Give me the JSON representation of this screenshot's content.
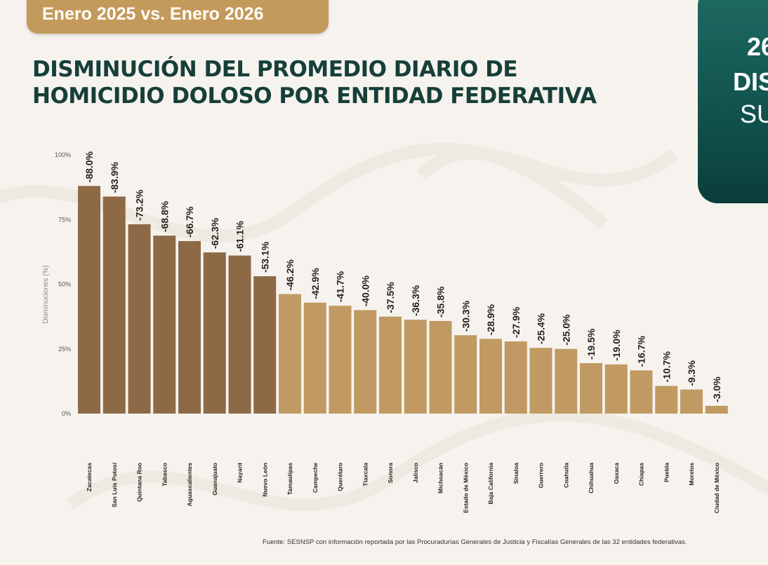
{
  "header": {
    "date_badge": "Enero 2025 vs. Enero 2026",
    "title_line1": "DISMINUCIÓN DEL PROMEDIO DIARIO DE",
    "title_line2": "HOMICIDIO DOLOSO POR ENTIDAD FEDERATIVA"
  },
  "side_card": {
    "number": "26",
    "line2": "DIS",
    "line3": "SU"
  },
  "chart_data": {
    "type": "bar",
    "title": "DISMINUCIÓN DEL PROMEDIO DIARIO DE HOMICIDIO DOLOSO POR ENTIDAD FEDERATIVA",
    "xlabel": "",
    "ylabel": "Disminuciones (%)",
    "ylim": [
      0,
      100
    ],
    "yticks": [
      0,
      25,
      50,
      75,
      100
    ],
    "ytick_labels": [
      "0%",
      "25%",
      "50%",
      "75%",
      "100%"
    ],
    "grid": false,
    "categories": [
      "Zacatecas",
      "San Luis Potosí",
      "Quintana Roo",
      "Tabasco",
      "Aguascalientes",
      "Guanajuato",
      "Nayarit",
      "Nuevo León",
      "Tamaulipas",
      "Campeche",
      "Querétaro",
      "Tlaxcala",
      "Sonora",
      "Jalisco",
      "Michoacán",
      "Estado de México",
      "Baja California",
      "Sinaloa",
      "Guerrero",
      "Coahuila",
      "Chihuahua",
      "Oaxaca",
      "Chiapas",
      "Puebla",
      "Morelos",
      "Ciudad de México"
    ],
    "values": [
      88.0,
      83.9,
      73.2,
      68.8,
      66.7,
      62.3,
      61.1,
      53.1,
      46.2,
      42.9,
      41.7,
      40.0,
      37.5,
      36.3,
      35.8,
      30.3,
      28.9,
      27.9,
      25.4,
      25.0,
      19.5,
      19.0,
      16.7,
      10.7,
      9.3,
      3.0
    ],
    "value_labels": [
      "-88.0%",
      "-83.9%",
      "-73.2%",
      "-68.8%",
      "-66.7%",
      "-62.3%",
      "-61.1%",
      "-53.1%",
      "-46.2%",
      "-42.9%",
      "-41.7%",
      "-40.0%",
      "-37.5%",
      "-36.3%",
      "-35.8%",
      "-30.3%",
      "-28.9%",
      "-27.9%",
      "-25.4%",
      "-25.0%",
      "-19.5%",
      "-19.0%",
      "-16.7%",
      "-10.7%",
      "-9.3%",
      "-3.0%"
    ],
    "dark_bar_count": 8,
    "colors": {
      "dark": "#8d6a45",
      "light": "#c09a62"
    },
    "source": "Fuente: SESNSP con información reportada por las Procuradurías Generales de Justicia y Fiscalías Generales de las 32 entidades federativas."
  },
  "colors": {
    "badge": "#c49a5c",
    "title": "#173f3a",
    "card": "#1f6b63",
    "background": "#f6f3ee"
  }
}
